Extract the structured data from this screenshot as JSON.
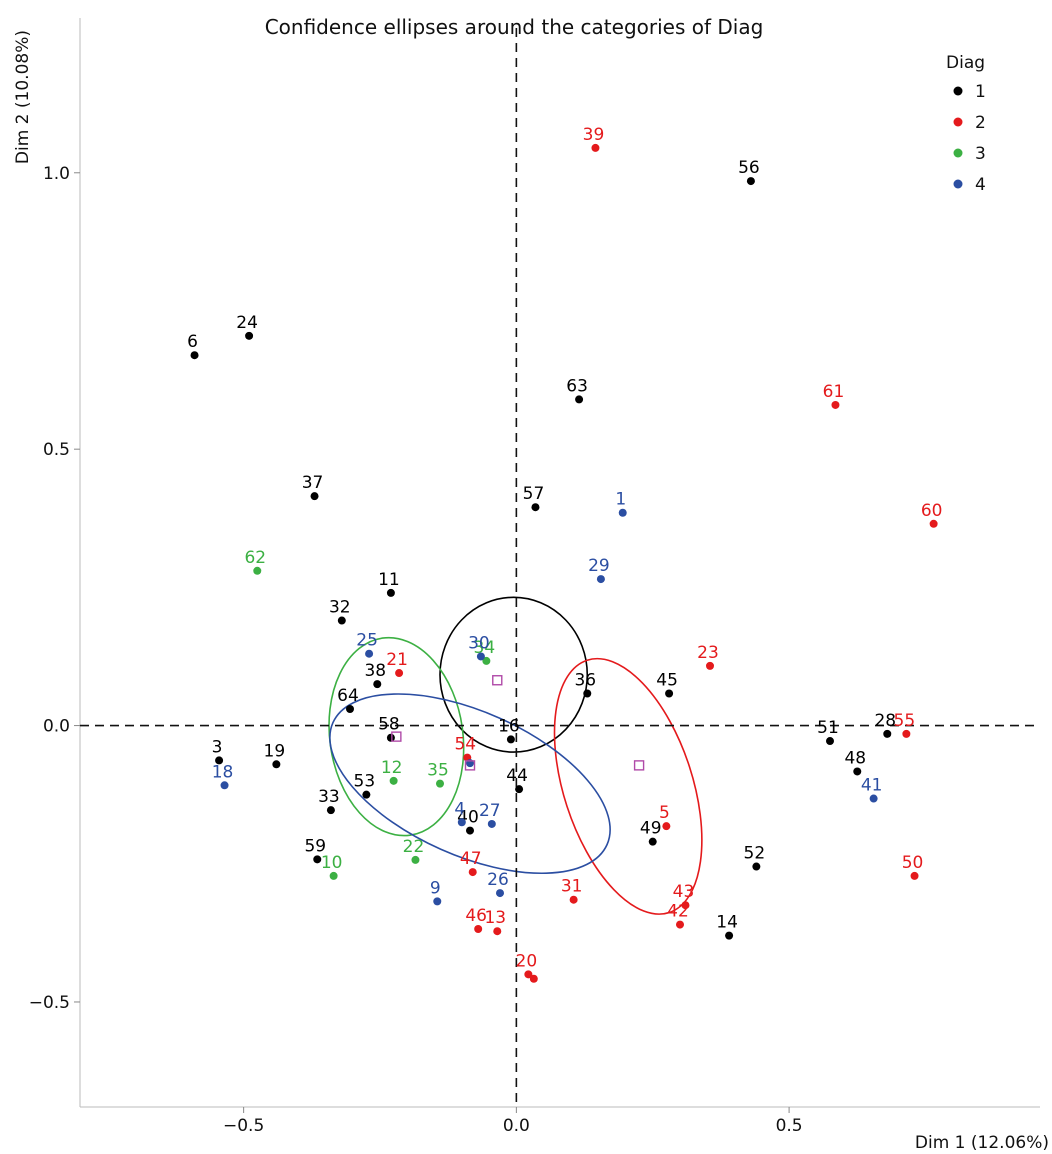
{
  "chart_data": {
    "type": "scatter",
    "title": "Confidence ellipses around the categories of Diag",
    "xlabel": "Dim 1 (12.06%)",
    "ylabel": "Dim 2 (10.08%)",
    "xlim": [
      -0.8,
      0.96
    ],
    "ylim": [
      -0.69,
      1.28
    ],
    "xticks": [
      -0.5,
      0.0,
      0.5
    ],
    "xtick_labels": [
      "−0.5",
      "0.0",
      "0.5"
    ],
    "yticks": [
      -0.5,
      0.0,
      0.5,
      1.0
    ],
    "ytick_labels": [
      "−0.5",
      "0.0",
      "0.5",
      "1.0"
    ],
    "grid": false,
    "reference_lines": {
      "x": 0.0,
      "y": 0.0,
      "style": "dashed"
    },
    "legend": {
      "title": "Diag",
      "position": "top-right",
      "entries": [
        {
          "label": "1",
          "color": "#000000"
        },
        {
          "label": "2",
          "color": "#e41a1c"
        },
        {
          "label": "3",
          "color": "#3cb043"
        },
        {
          "label": "4",
          "color": "#2b4ea2"
        }
      ]
    },
    "series": [
      {
        "name": "1",
        "color": "#000000",
        "points": [
          {
            "label": "56",
            "x": 0.43,
            "y": 0.985
          },
          {
            "label": "24",
            "x": -0.49,
            "y": 0.705
          },
          {
            "label": "6",
            "x": -0.59,
            "y": 0.67
          },
          {
            "label": "63",
            "x": 0.115,
            "y": 0.59
          },
          {
            "label": "37",
            "x": -0.37,
            "y": 0.415
          },
          {
            "label": "57",
            "x": 0.035,
            "y": 0.395
          },
          {
            "label": "11",
            "x": -0.23,
            "y": 0.24
          },
          {
            "label": "32",
            "x": -0.32,
            "y": 0.19
          },
          {
            "label": "38",
            "x": -0.255,
            "y": 0.075
          },
          {
            "label": "64",
            "x": -0.305,
            "y": 0.03
          },
          {
            "label": "36",
            "x": 0.13,
            "y": 0.058
          },
          {
            "label": "45",
            "x": 0.28,
            "y": 0.058
          },
          {
            "label": "58",
            "x": -0.23,
            "y": -0.022
          },
          {
            "label": "16",
            "x": -0.01,
            "y": -0.025
          },
          {
            "label": "51",
            "x": 0.575,
            "y": -0.028
          },
          {
            "label": "28",
            "x": 0.68,
            "y": -0.015
          },
          {
            "label": "48",
            "x": 0.625,
            "y": -0.083
          },
          {
            "label": "3",
            "x": -0.545,
            "y": -0.063
          },
          {
            "label": "19",
            "x": -0.44,
            "y": -0.07
          },
          {
            "label": "44",
            "x": 0.005,
            "y": -0.115
          },
          {
            "label": "53",
            "x": -0.275,
            "y": -0.125
          },
          {
            "label": "33",
            "x": -0.34,
            "y": -0.153
          },
          {
            "label": "40",
            "x": -0.085,
            "y": -0.19
          },
          {
            "label": "49",
            "x": 0.25,
            "y": -0.21
          },
          {
            "label": "52",
            "x": 0.44,
            "y": -0.255
          },
          {
            "label": "59",
            "x": -0.365,
            "y": -0.242
          },
          {
            "label": "14",
            "x": 0.39,
            "y": -0.38
          }
        ]
      },
      {
        "name": "2",
        "color": "#e41a1c",
        "points": [
          {
            "label": "39",
            "x": 0.145,
            "y": 1.045
          },
          {
            "label": "61",
            "x": 0.585,
            "y": 0.58
          },
          {
            "label": "60",
            "x": 0.765,
            "y": 0.365
          },
          {
            "label": "23",
            "x": 0.355,
            "y": 0.108
          },
          {
            "label": "21",
            "x": -0.215,
            "y": 0.095
          },
          {
            "label": "55",
            "x": 0.715,
            "y": -0.015
          },
          {
            "label": "54",
            "x": -0.09,
            "y": -0.058
          },
          {
            "label": "5",
            "x": 0.275,
            "y": -0.182
          },
          {
            "label": "47",
            "x": -0.08,
            "y": -0.265
          },
          {
            "label": "50",
            "x": 0.73,
            "y": -0.272
          },
          {
            "label": "31",
            "x": 0.105,
            "y": -0.315
          },
          {
            "label": "43",
            "x": 0.31,
            "y": -0.325
          },
          {
            "label": "42",
            "x": 0.3,
            "y": -0.36
          },
          {
            "label": "46",
            "x": -0.07,
            "y": -0.368
          },
          {
            "label": "13",
            "x": -0.035,
            "y": -0.372
          },
          {
            "label": "20",
            "x": 0.022,
            "y": -0.45
          },
          {
            "label": "",
            "x": 0.032,
            "y": -0.458
          }
        ]
      },
      {
        "name": "3",
        "color": "#3cb043",
        "points": [
          {
            "label": "62",
            "x": -0.475,
            "y": 0.28
          },
          {
            "label": "34",
            "x": -0.055,
            "y": 0.117
          },
          {
            "label": "12",
            "x": -0.225,
            "y": -0.1
          },
          {
            "label": "35",
            "x": -0.14,
            "y": -0.105
          },
          {
            "label": "22",
            "x": -0.185,
            "y": -0.243
          },
          {
            "label": "10",
            "x": -0.335,
            "y": -0.272
          }
        ]
      },
      {
        "name": "4",
        "color": "#2b4ea2",
        "points": [
          {
            "label": "1",
            "x": 0.195,
            "y": 0.385
          },
          {
            "label": "29",
            "x": 0.155,
            "y": 0.265
          },
          {
            "label": "30",
            "x": -0.065,
            "y": 0.125
          },
          {
            "label": "25",
            "x": -0.27,
            "y": 0.13
          },
          {
            "label": "18",
            "x": -0.535,
            "y": -0.108
          },
          {
            "label": "41",
            "x": 0.655,
            "y": -0.132
          },
          {
            "label": "4",
            "x": -0.1,
            "y": -0.175
          },
          {
            "label": "27",
            "x": -0.045,
            "y": -0.178
          },
          {
            "label": "26",
            "x": -0.03,
            "y": -0.303
          },
          {
            "label": "9",
            "x": -0.145,
            "y": -0.318
          },
          {
            "label": "",
            "x": -0.085,
            "y": -0.068
          }
        ]
      }
    ],
    "centroids": [
      {
        "series": "1",
        "x": -0.035,
        "y": 0.082
      },
      {
        "series": "2",
        "x": 0.225,
        "y": -0.072
      },
      {
        "series": "3",
        "x": -0.22,
        "y": -0.02
      },
      {
        "series": "4",
        "x": -0.085,
        "y": -0.072
      }
    ],
    "ellipses": [
      {
        "series": "1",
        "cx": -0.005,
        "cy": 0.092,
        "rx": 0.135,
        "ry": 0.14,
        "angle": 0
      },
      {
        "series": "2",
        "cx": 0.205,
        "cy": -0.11,
        "rx": 0.118,
        "ry": 0.24,
        "angle": -18
      },
      {
        "series": "3",
        "cx": -0.22,
        "cy": -0.02,
        "rx": 0.122,
        "ry": 0.18,
        "angle": -8
      },
      {
        "series": "4",
        "cx": -0.085,
        "cy": -0.105,
        "rx": 0.275,
        "ry": 0.13,
        "angle": 24
      }
    ]
  }
}
